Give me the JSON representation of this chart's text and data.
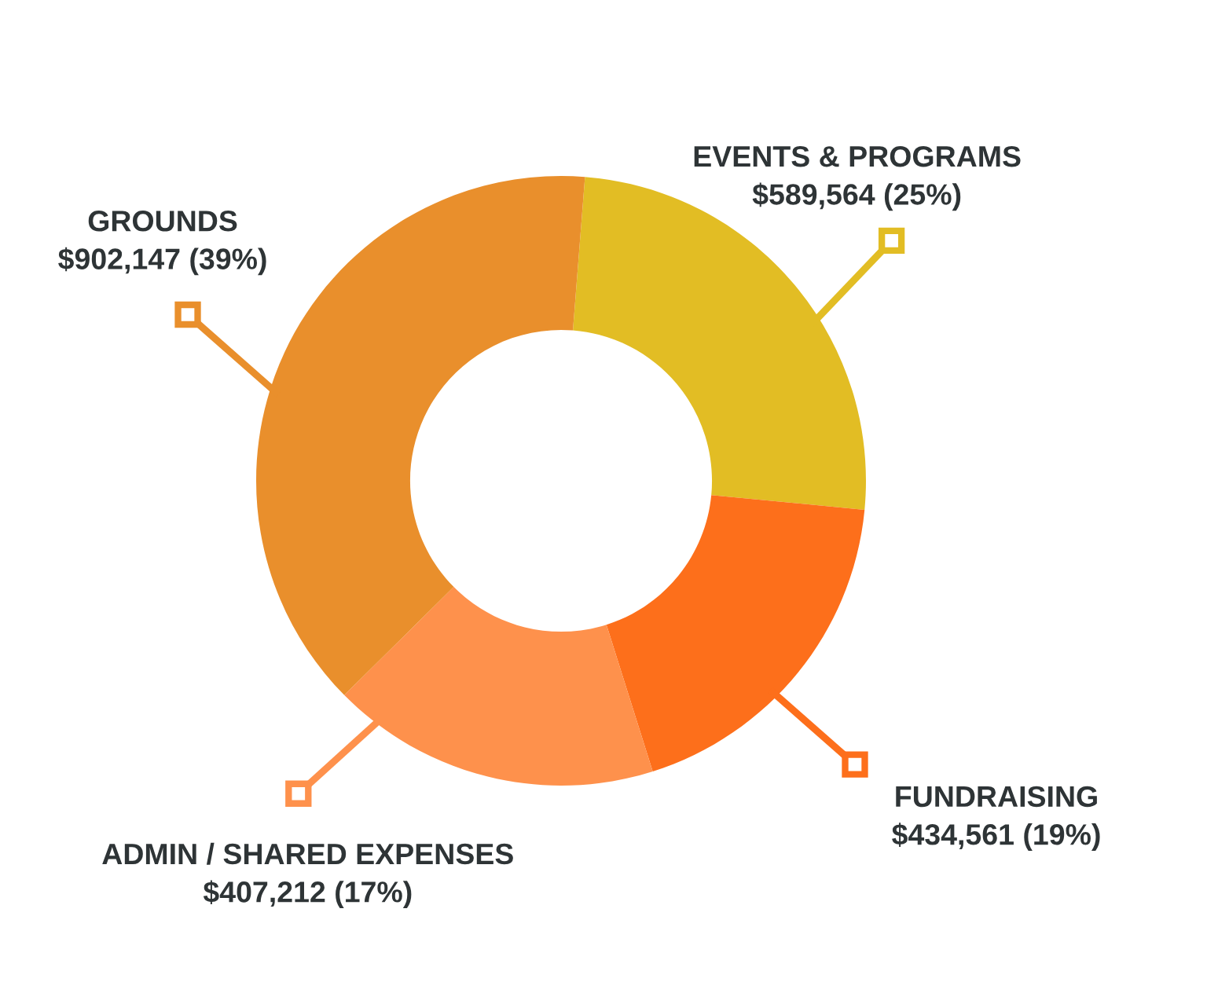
{
  "chart_data": {
    "type": "donut",
    "categories": [
      "EVENTS & PROGRAMS",
      "FUNDRAISING",
      "ADMIN / SHARED EXPENSES",
      "GROUNDS"
    ],
    "values": [
      589564,
      434561,
      407212,
      902147
    ],
    "value_labels": [
      "$589,564 (25%)",
      "$434,561 (19%)",
      "$407,212 (17%)",
      "$902,147 (39%)"
    ],
    "colors": [
      "#e2bd24",
      "#fd6f1b",
      "#fe914c",
      "#e98f2c"
    ]
  }
}
